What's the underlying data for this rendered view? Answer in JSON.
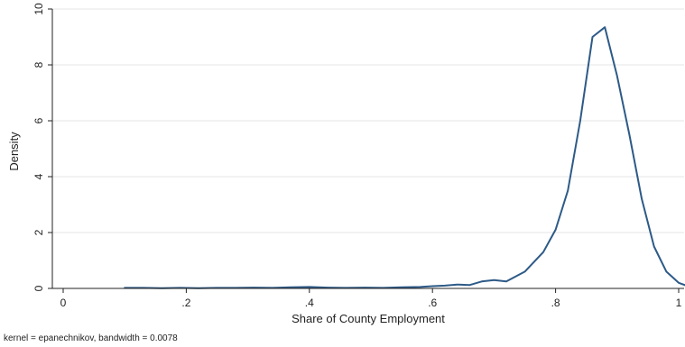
{
  "chart_data": {
    "type": "line",
    "title": "",
    "xlabel": "Share of County Employment",
    "ylabel": "Density",
    "note": "kernel = epanechnikov, bandwidth = 0.0078",
    "xlim": [
      0,
      1
    ],
    "ylim": [
      0,
      10
    ],
    "x_ticks": [
      {
        "value": 0,
        "label": "0"
      },
      {
        "value": 0.2,
        "label": ".2"
      },
      {
        "value": 0.4,
        "label": ".4"
      },
      {
        "value": 0.6,
        "label": ".6"
      },
      {
        "value": 0.8,
        "label": ".8"
      },
      {
        "value": 1,
        "label": "1"
      }
    ],
    "y_ticks": [
      {
        "value": 0,
        "label": "0"
      },
      {
        "value": 2,
        "label": "2"
      },
      {
        "value": 4,
        "label": "4"
      },
      {
        "value": 6,
        "label": "6"
      },
      {
        "value": 8,
        "label": "8"
      },
      {
        "value": 10,
        "label": "10"
      }
    ],
    "grid": "horizontal",
    "legend": "none",
    "colors": {
      "line": "#2d5a87",
      "grid": "#e6e6e6",
      "axis": "#222222"
    },
    "series": [
      {
        "x": [
          0.1,
          0.13,
          0.16,
          0.19,
          0.22,
          0.25,
          0.28,
          0.31,
          0.34,
          0.37,
          0.4,
          0.43,
          0.46,
          0.49,
          0.52,
          0.55,
          0.58,
          0.6,
          0.62,
          0.64,
          0.66,
          0.68,
          0.7,
          0.72,
          0.75,
          0.78,
          0.8,
          0.82,
          0.84,
          0.86,
          0.88,
          0.9,
          0.92,
          0.94,
          0.96,
          0.98,
          1.0,
          1.01
        ],
        "y": [
          0.02,
          0.02,
          0.01,
          0.02,
          0.01,
          0.02,
          0.02,
          0.03,
          0.02,
          0.04,
          0.05,
          0.03,
          0.02,
          0.03,
          0.02,
          0.04,
          0.05,
          0.08,
          0.1,
          0.14,
          0.12,
          0.25,
          0.3,
          0.25,
          0.6,
          1.3,
          2.1,
          3.5,
          6.0,
          9.0,
          9.35,
          7.6,
          5.5,
          3.2,
          1.5,
          0.6,
          0.2,
          0.12
        ]
      }
    ]
  }
}
